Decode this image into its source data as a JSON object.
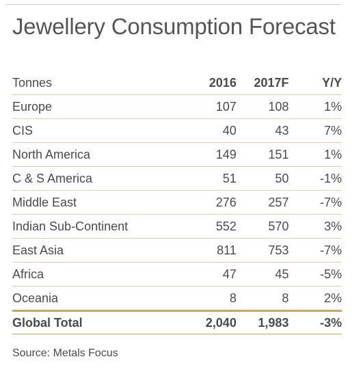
{
  "title": "Jewellery Consumption Forecast",
  "table": {
    "headers": [
      "Tonnes",
      "2016",
      "2017F",
      "Y/Y"
    ],
    "rows": [
      {
        "region": "Europe",
        "y2016": "107",
        "y2017f": "108",
        "yoy": "1%"
      },
      {
        "region": "CIS",
        "y2016": "40",
        "y2017f": "43",
        "yoy": "7%"
      },
      {
        "region": "North America",
        "y2016": "149",
        "y2017f": "151",
        "yoy": "1%"
      },
      {
        "region": "C & S America",
        "y2016": "51",
        "y2017f": "50",
        "yoy": "-1%"
      },
      {
        "region": "Middle East",
        "y2016": "276",
        "y2017f": "257",
        "yoy": "-7%"
      },
      {
        "region": "Indian Sub-Continent",
        "y2016": "552",
        "y2017f": "570",
        "yoy": "3%"
      },
      {
        "region": "East Asia",
        "y2016": "811",
        "y2017f": "753",
        "yoy": "-7%"
      },
      {
        "region": "Africa",
        "y2016": "47",
        "y2017f": "45",
        "yoy": "-5%"
      },
      {
        "region": "Oceania",
        "y2016": "8",
        "y2017f": "8",
        "yoy": "2%"
      }
    ],
    "total": {
      "region": "Global Total",
      "y2016": "2,040",
      "y2017f": "1,983",
      "yoy": "-3%"
    }
  },
  "source": "Source: Metals Focus",
  "colors": {
    "rule_gold": "#c9a94e",
    "row_rule": "#e0cfa0",
    "text": "#4a4a4a"
  }
}
